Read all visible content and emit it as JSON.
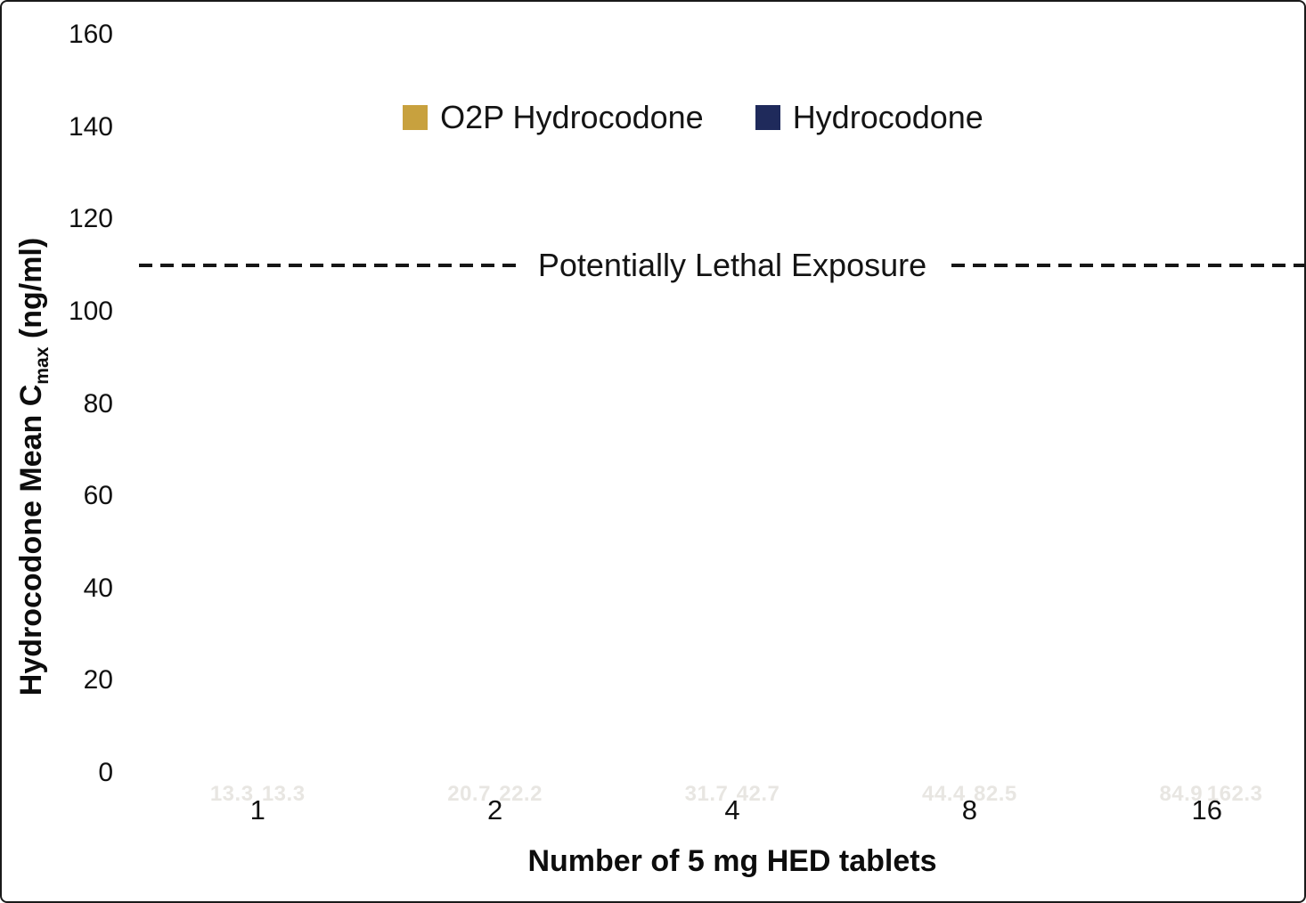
{
  "frame": {
    "background": "#ffffff",
    "border_color": "#1a1a1a"
  },
  "chart_data": {
    "type": "bar",
    "title": "",
    "categories": [
      "1",
      "2",
      "4",
      "8",
      "16"
    ],
    "series": [
      {
        "name": "O2P Hydrocodone",
        "color": "#C8A13E",
        "values": [
          13.3,
          20.7,
          31.7,
          44.4,
          84.9
        ]
      },
      {
        "name": "Hydrocodone",
        "color": "#1F2A5B",
        "values": [
          13.3,
          22.2,
          42.7,
          82.5,
          162.3
        ]
      }
    ],
    "bar_labels": [
      "13.3",
      "20.7",
      "31.7",
      "44.4",
      "84.9",
      "13.3",
      "22.2",
      "42.7",
      "82.5",
      "162.3"
    ],
    "bar_label_color": "#E8E6E2",
    "xlabel": "Number of 5 mg HED tablets",
    "ylabel": "Hydrocodone Mean Cmax (ng/ml)",
    "ylabel_parts": {
      "pre": "Hydrocodone Mean C",
      "sub": "max",
      "post": " (ng/ml)"
    },
    "ylim": [
      0,
      160
    ],
    "yticks": [
      0,
      20,
      40,
      60,
      80,
      100,
      120,
      140,
      160
    ],
    "threshold": {
      "value": 110,
      "label": "Potentially Lethal Exposure",
      "line_color": "#161616",
      "style": "dashed"
    },
    "legend_position": "top-center",
    "grid": false
  }
}
